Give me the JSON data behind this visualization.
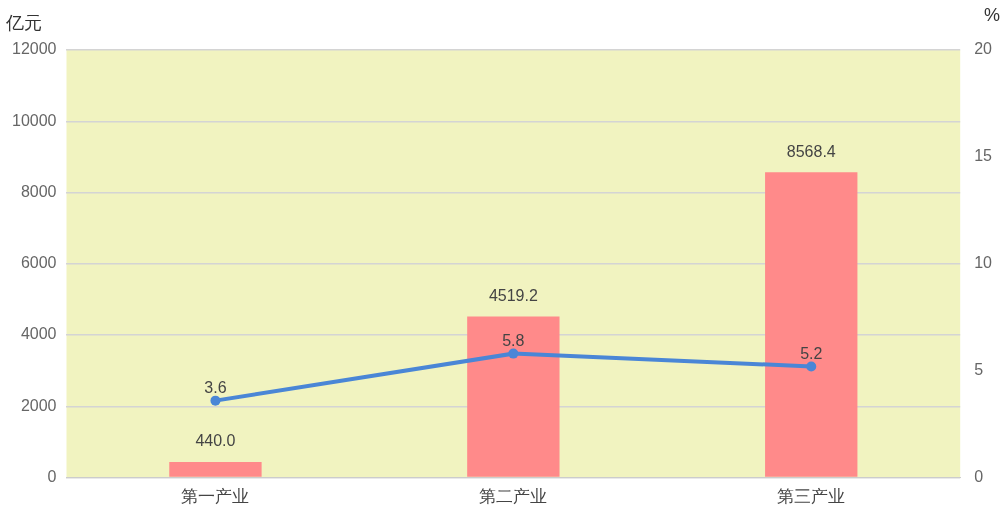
{
  "chart_data": {
    "type": "bar",
    "ylabel": "亿元",
    "y2label": "%",
    "categories": [
      "第一产业",
      "第二产业",
      "第三产业"
    ],
    "series": [
      {
        "color": "#ff8a8a",
        "values": [
          440.0,
          4519.2,
          8568.4
        ],
        "value_labels": [
          "440.0",
          "4519.2",
          "8568.4"
        ]
      },
      {
        "type": "line",
        "axis": "y2",
        "color": "#4a86d6",
        "values": [
          3.6,
          5.8,
          5.2
        ],
        "value_labels": [
          "3.6",
          "5.8",
          "5.2"
        ]
      }
    ],
    "ylim": [
      0,
      12000
    ],
    "yticks": [
      0,
      2000,
      4000,
      6000,
      8000,
      10000,
      12000
    ],
    "y2lim": [
      0,
      20
    ],
    "y2ticks": [
      0,
      5,
      10,
      15,
      20
    ],
    "grid": "y",
    "legend": false,
    "marker": "circle"
  }
}
